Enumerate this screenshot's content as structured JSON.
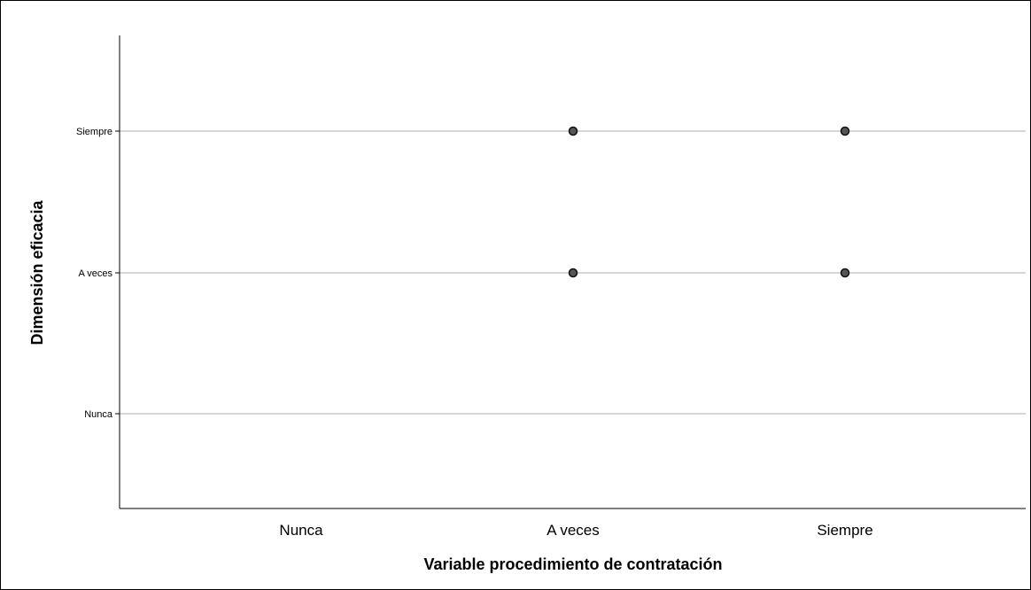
{
  "chart_data": {
    "type": "scatter",
    "title": "",
    "xlabel": "Variable procedimiento de contratación",
    "ylabel": "Dimensión eficacia",
    "x_categories": [
      "Nunca",
      "A veces",
      "Siempre"
    ],
    "y_categories": [
      "Nunca",
      "A veces",
      "Siempre"
    ],
    "points": [
      {
        "x": "A veces",
        "y": "Siempre"
      },
      {
        "x": "Siempre",
        "y": "Siempre"
      },
      {
        "x": "A veces",
        "y": "A veces"
      },
      {
        "x": "Siempre",
        "y": "A veces"
      }
    ],
    "grid": "horizontal",
    "legend": "none"
  }
}
